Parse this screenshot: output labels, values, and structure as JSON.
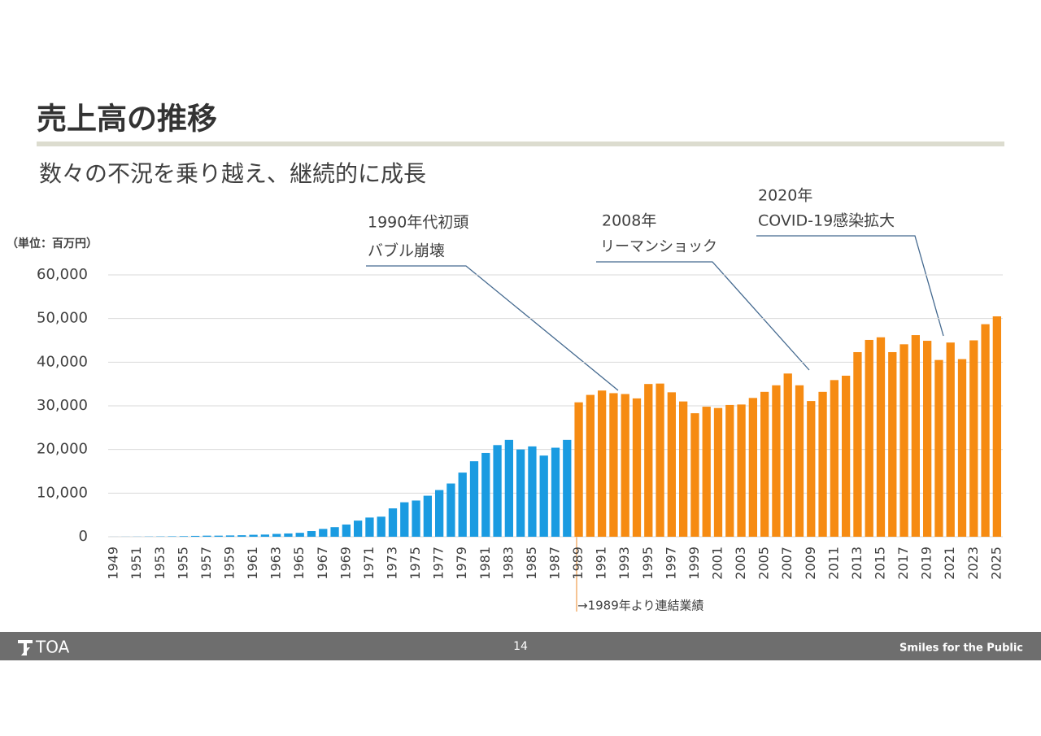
{
  "chart_data": {
    "type": "bar",
    "title": "売上高の推移",
    "subtitle": "数々の不況を乗り越え、継続的に成長",
    "y_label": "（単位：百万円）",
    "categories": [
      "1949",
      null,
      "1951",
      null,
      "1953",
      null,
      "1955",
      null,
      "1957",
      null,
      "1959",
      null,
      "1961",
      null,
      "1963",
      null,
      "1965",
      null,
      "1967",
      null,
      "1969",
      null,
      "1971",
      null,
      "1973",
      null,
      "1975",
      null,
      "1977",
      null,
      "1979",
      null,
      "1981",
      null,
      "1983",
      null,
      "1985",
      null,
      "1987",
      null,
      "1989",
      null,
      "1991",
      null,
      "1993",
      null,
      "1995",
      null,
      "1997",
      null,
      "1999",
      null,
      "2001",
      null,
      "2003",
      null,
      "2005",
      null,
      "2007",
      null,
      "2009",
      null,
      "2011",
      null,
      "2013",
      null,
      "2015",
      null,
      "2017",
      null,
      "2019",
      null,
      "2021",
      null,
      "2023",
      null,
      "2025"
    ],
    "values": [
      10,
      20,
      30,
      50,
      70,
      100,
      130,
      200,
      250,
      250,
      300,
      350,
      450,
      500,
      650,
      750,
      900,
      1300,
      1800,
      2200,
      2800,
      3700,
      4400,
      4600,
      6500,
      7900,
      8300,
      9400,
      10700,
      12200,
      14700,
      17300,
      19200,
      21000,
      22200,
      20000,
      20700,
      18600,
      20400,
      22200,
      30800,
      32500,
      33500,
      32900,
      32700,
      31700,
      35000,
      35100,
      33100,
      31000,
      28300,
      29800,
      29500,
      30200,
      30300,
      31800,
      33200,
      34700,
      37400,
      34700,
      31100,
      33200,
      35900,
      36900,
      42300,
      45100,
      45700,
      42300,
      44100,
      46200,
      44900,
      40500,
      44500,
      40700,
      45000,
      48700,
      50500
    ],
    "colors": [
      "#1a9be1",
      "#1a9be1",
      "#1a9be1",
      "#1a9be1",
      "#1a9be1",
      "#1a9be1",
      "#1a9be1",
      "#1a9be1",
      "#1a9be1",
      "#1a9be1",
      "#1a9be1",
      "#1a9be1",
      "#1a9be1",
      "#1a9be1",
      "#1a9be1",
      "#1a9be1",
      "#1a9be1",
      "#1a9be1",
      "#1a9be1",
      "#1a9be1",
      "#1a9be1",
      "#1a9be1",
      "#1a9be1",
      "#1a9be1",
      "#1a9be1",
      "#1a9be1",
      "#1a9be1",
      "#1a9be1",
      "#1a9be1",
      "#1a9be1",
      "#1a9be1",
      "#1a9be1",
      "#1a9be1",
      "#1a9be1",
      "#1a9be1",
      "#1a9be1",
      "#1a9be1",
      "#1a9be1",
      "#1a9be1",
      "#1a9be1",
      "#f68b12",
      "#f68b12",
      "#f68b12",
      "#f68b12",
      "#f68b12",
      "#f68b12",
      "#f68b12",
      "#f68b12",
      "#f68b12",
      "#f68b12",
      "#f68b12",
      "#f68b12",
      "#f68b12",
      "#f68b12",
      "#f68b12",
      "#f68b12",
      "#f68b12",
      "#f68b12",
      "#f68b12",
      "#f68b12",
      "#f68b12",
      "#f68b12",
      "#f68b12",
      "#f68b12",
      "#f68b12",
      "#f68b12",
      "#f68b12",
      "#f68b12",
      "#f68b12",
      "#f68b12",
      "#f68b12",
      "#f68b12",
      "#f68b12",
      "#f68b12",
      "#f68b12",
      "#f68b12",
      "#f68b12"
    ],
    "ylim": [
      0,
      60000
    ],
    "yticks": [
      0,
      {
        "value": 10000,
        "label": "10,000"
      },
      {
        "value": 20000,
        "label": "20,000"
      },
      {
        "value": 30000,
        "label": "30,000"
      },
      {
        "value": 40000,
        "label": "40,000"
      },
      {
        "value": 50000,
        "label": "50,000"
      },
      {
        "value": 60000,
        "label": "60,000"
      }
    ],
    "grid": true,
    "annotations": [
      {
        "lines": [
          "1990年代初頭",
          "バブル崩壊"
        ]
      },
      {
        "lines": [
          "2008年",
          "リーマンショック"
        ]
      },
      {
        "lines": [
          "2020年",
          "COVID-19感染拡大"
        ]
      },
      {
        "lines": [
          "→1989年より連結業績"
        ]
      }
    ]
  },
  "footer": {
    "logo": "TOA",
    "page": "14",
    "slogan": "Smiles for the Public"
  }
}
